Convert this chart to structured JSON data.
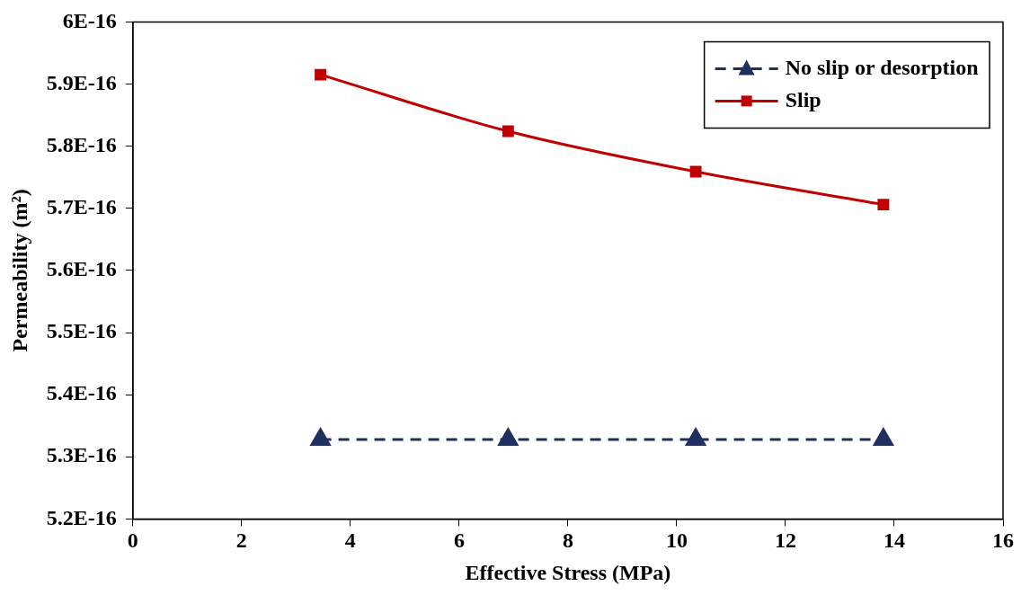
{
  "chart_data": {
    "type": "line",
    "xlabel": "Effective Stress (MPa)",
    "ylabel": "Permeability (m²)",
    "x": [
      3.45,
      6.9,
      10.35,
      13.8
    ],
    "series": [
      {
        "name": "No slip or desorption",
        "color": "#1f3060",
        "values": [
          5.328e-16,
          5.328e-16,
          5.328e-16,
          5.328e-16
        ],
        "marker": "triangle",
        "line_style": "dashed"
      },
      {
        "name": "Slip",
        "color": "#c00000",
        "values": [
          5.915e-16,
          5.824e-16,
          5.759e-16,
          5.706e-16
        ],
        "marker": "square",
        "line_style": "solid"
      }
    ],
    "xlim": [
      0,
      16
    ],
    "xticks": [
      0,
      2,
      4,
      6,
      8,
      10,
      12,
      14,
      16
    ],
    "ylim": [
      5.2e-16,
      6e-16
    ],
    "yticks": [
      {
        "value": 5.2e-16,
        "label": "5.2E-16"
      },
      {
        "value": 5.3e-16,
        "label": "5.3E-16"
      },
      {
        "value": 5.4e-16,
        "label": "5.4E-16"
      },
      {
        "value": 5.5e-16,
        "label": "5.5E-16"
      },
      {
        "value": 5.6e-16,
        "label": "5.6E-16"
      },
      {
        "value": 5.7e-16,
        "label": "5.7E-16"
      },
      {
        "value": 5.8e-16,
        "label": "5.8E-16"
      },
      {
        "value": 5.9e-16,
        "label": "5.9E-16"
      },
      {
        "value": 6e-16,
        "label": "6E-16"
      }
    ],
    "grid": false,
    "legend": "top right"
  }
}
